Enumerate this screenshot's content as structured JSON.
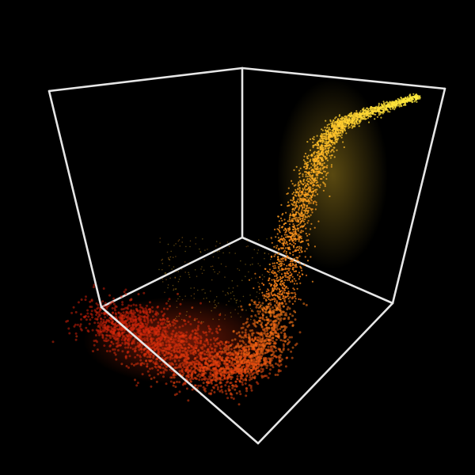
{
  "scene": {
    "background_color": "#000000",
    "frame_color": "#e6e6e6",
    "colormap": [
      "#c81e0a",
      "#e8420f",
      "#ff8a1c",
      "#ffc22a",
      "#ffee40"
    ],
    "projection": "3d-isometric-box",
    "visible_box_edges": 9,
    "description_tokens": [
      "point-cloud",
      "s-curve"
    ]
  }
}
